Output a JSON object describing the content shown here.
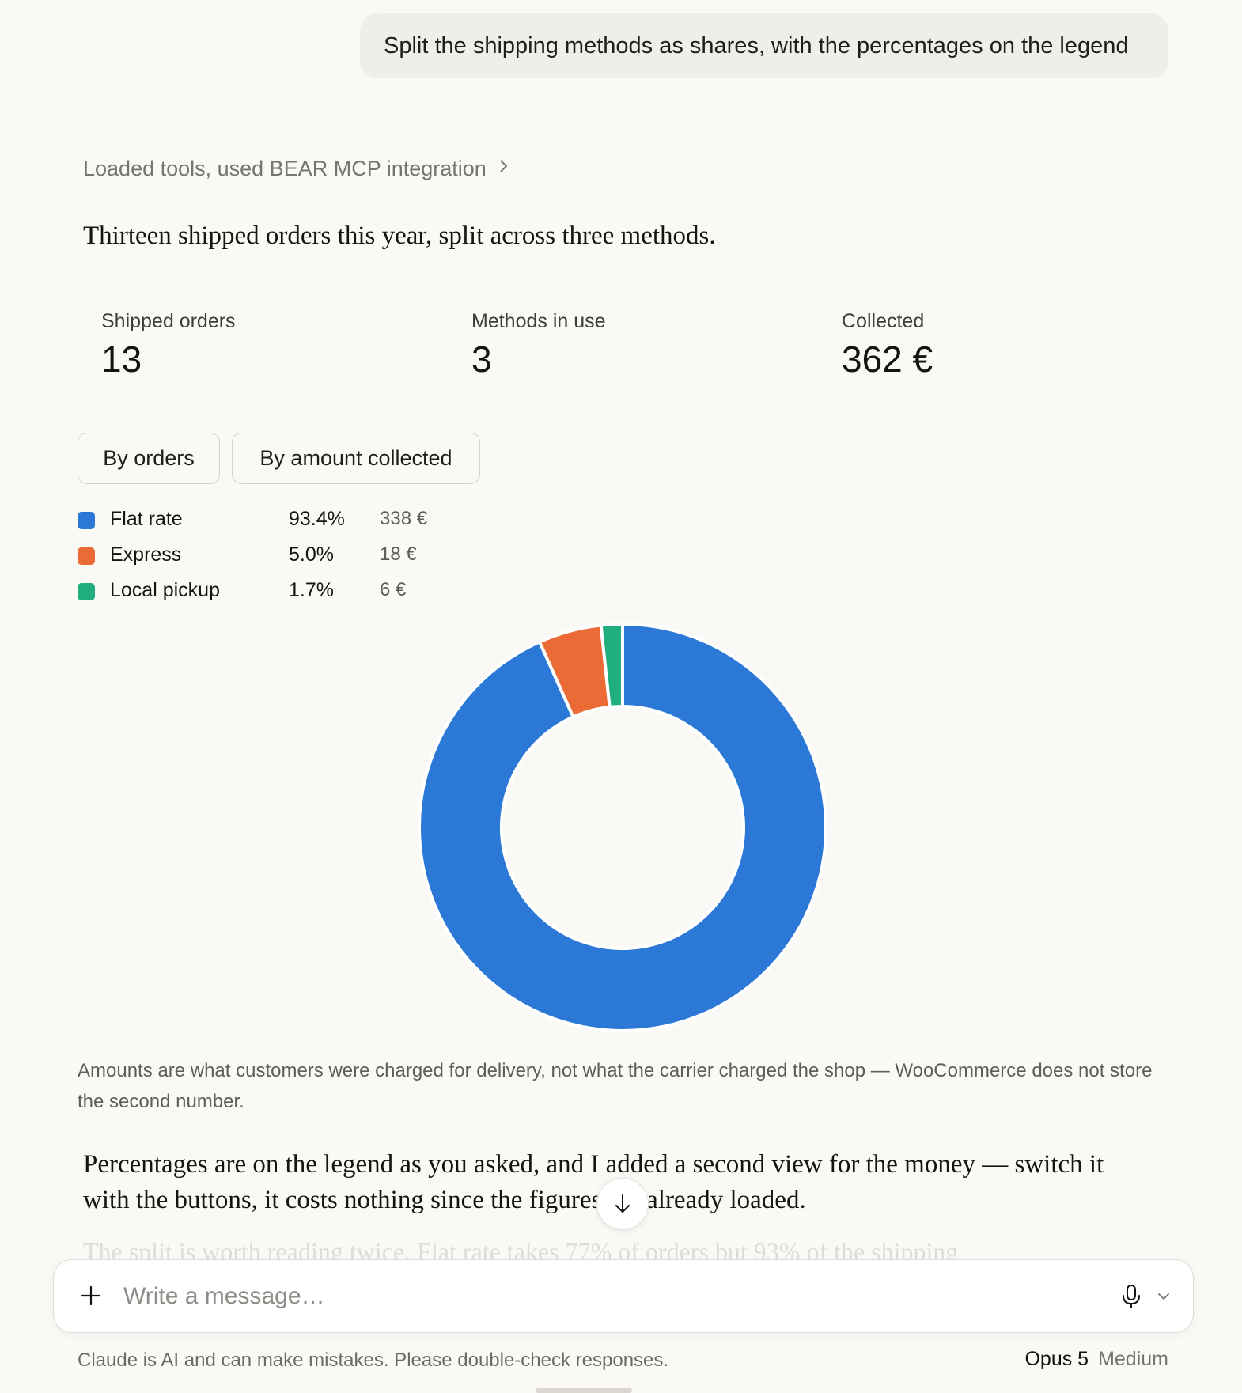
{
  "user_message": "Split the shipping methods as shares, with the percentages on the legend",
  "tools_summary": "Loaded tools, used BEAR MCP integration",
  "intro": "Thirteen shipped orders this year, split across three methods.",
  "stats": [
    {
      "label": "Shipped orders",
      "value": "13"
    },
    {
      "label": "Methods in use",
      "value": "3"
    },
    {
      "label": "Collected",
      "value": "362 €"
    }
  ],
  "view_buttons": {
    "orders": "By orders",
    "amount": "By amount collected"
  },
  "legend": [
    {
      "name": "Flat rate",
      "pct": "93.4%",
      "amount": "338 €",
      "color": "#2b78d6"
    },
    {
      "name": "Express",
      "pct": "5.0%",
      "amount": "18 €",
      "color": "#eb6a36"
    },
    {
      "name": "Local pickup",
      "pct": "1.7%",
      "amount": "6 €",
      "color": "#1fae7c"
    }
  ],
  "chart_data": {
    "type": "pie",
    "categories": [
      "Flat rate",
      "Express",
      "Local pickup"
    ],
    "values": [
      93.4,
      5.0,
      1.7
    ],
    "amounts": [
      338,
      18,
      6
    ],
    "colors": [
      "#2b78d6",
      "#eb6a36",
      "#1fae7c"
    ]
  },
  "footnote": "Amounts are what customers were charged for delivery, not what the carrier charged the shop — WooCommerce does not store the second number.",
  "paragraph": "Percentages are on the legend as you asked, and I added a second view for the money — switch it with the buttons, it costs nothing since the figures are already loaded.",
  "faded_text": "The split is worth reading twice. Flat rate takes 77% of orders but 93% of the shipping",
  "composer": {
    "placeholder": "Write a message…"
  },
  "disclaimer": "Claude is AI and can make mistakes. Please double-check responses.",
  "model": {
    "name": "Opus 5",
    "effort": "Medium"
  },
  "icons": {
    "tools_chevron": "chevron-right-icon",
    "scroll": "arrow-down-icon",
    "plus": "plus-icon",
    "mic": "microphone-icon",
    "mic_menu": "chevron-down-icon"
  }
}
